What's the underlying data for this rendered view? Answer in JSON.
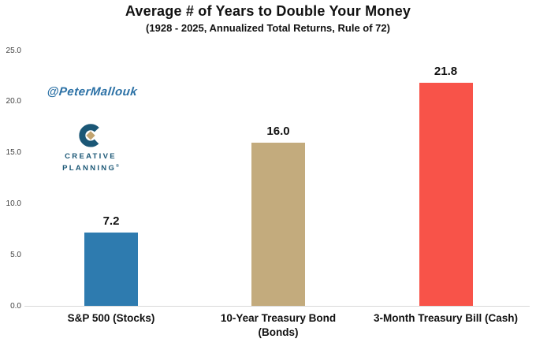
{
  "chart_data": {
    "type": "bar",
    "title": "Average # of Years to Double Your Money",
    "subtitle": "(1928 - 2025, Annualized Total Returns, Rule of 72)",
    "categories": [
      "S&P 500 (Stocks)",
      "10-Year Treasury Bond (Bonds)",
      "3-Month Treasury Bill (Cash)"
    ],
    "category_lines": [
      [
        "S&P 500 (Stocks)"
      ],
      [
        "10-Year Treasury Bond",
        "(Bonds)"
      ],
      [
        "3-Month Treasury Bill (Cash)"
      ]
    ],
    "values": [
      7.2,
      16.0,
      21.8
    ],
    "value_labels": [
      "7.2",
      "16.0",
      "21.8"
    ],
    "bar_colors": [
      "#2E7BAF",
      "#C3AB7D",
      "#F85349"
    ],
    "ids": [
      "bar-sp500-stocks",
      "bar-10yr-treasury-bond",
      "bar-3mo-treasury-bill"
    ],
    "xlabel": "",
    "ylabel": "",
    "ylim": [
      0,
      25
    ],
    "ytick_values": [
      0,
      5,
      10,
      15,
      20,
      25
    ],
    "ytick_labels": [
      "0.0",
      "5.0",
      "10.0",
      "15.0",
      "20.0",
      "25.0"
    ],
    "grid": false,
    "legend": "none",
    "axis_line_color": "#D9D9D9"
  },
  "watermark": {
    "handle": "@PeterMallouk",
    "color": "#2A70A5"
  },
  "logo": {
    "line1": "CREATIVE",
    "line2": "PLANNING",
    "trademark": "®",
    "teal": "#1B5776",
    "gold": "#C2A470"
  }
}
